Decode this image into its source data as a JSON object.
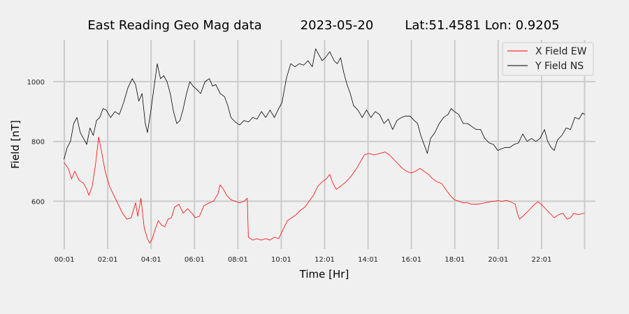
{
  "chart_data": {
    "type": "line",
    "title_parts": [
      "East Reading Geo Mag data",
      "2023-05-20",
      "Lat:51.4581  Lon: 0.9205"
    ],
    "xlabel": "Time  [Hr]",
    "ylabel": "Field  [nT]",
    "x_unit": "hours",
    "xlim": [
      -0.5,
      24.5
    ],
    "ylim": [
      440,
      1140
    ],
    "x_ticks": [
      {
        "value": 0.0167,
        "label": "00:01"
      },
      {
        "value": 2.0167,
        "label": "02:01"
      },
      {
        "value": 4.0167,
        "label": "04:01"
      },
      {
        "value": 6.0167,
        "label": "06:01"
      },
      {
        "value": 8.0167,
        "label": "08:01"
      },
      {
        "value": 10.0167,
        "label": "10:01"
      },
      {
        "value": 12.0167,
        "label": "12:01"
      },
      {
        "value": 14.0167,
        "label": "14:01"
      },
      {
        "value": 16.0167,
        "label": "16:01"
      },
      {
        "value": 18.0167,
        "label": "18:01"
      },
      {
        "value": 20.0167,
        "label": "20:01"
      },
      {
        "value": 22.0167,
        "label": "22:01"
      }
    ],
    "y_ticks": [
      600,
      800,
      1000
    ],
    "grid": true,
    "legend_position": "top-right",
    "series": [
      {
        "name": "X Field EW",
        "color": "#ff0000",
        "points": [
          [
            0.0,
            730
          ],
          [
            0.2,
            710
          ],
          [
            0.35,
            675
          ],
          [
            0.5,
            700
          ],
          [
            0.7,
            670
          ],
          [
            0.9,
            660
          ],
          [
            1.05,
            640
          ],
          [
            1.15,
            620
          ],
          [
            1.3,
            650
          ],
          [
            1.45,
            720
          ],
          [
            1.6,
            815
          ],
          [
            1.75,
            760
          ],
          [
            1.9,
            700
          ],
          [
            2.1,
            650
          ],
          [
            2.3,
            620
          ],
          [
            2.5,
            590
          ],
          [
            2.7,
            560
          ],
          [
            2.9,
            540
          ],
          [
            3.1,
            545
          ],
          [
            3.3,
            595
          ],
          [
            3.4,
            550
          ],
          [
            3.55,
            610
          ],
          [
            3.7,
            510
          ],
          [
            3.85,
            475
          ],
          [
            3.95,
            460
          ],
          [
            4.05,
            470
          ],
          [
            4.2,
            505
          ],
          [
            4.35,
            535
          ],
          [
            4.5,
            520
          ],
          [
            4.65,
            515
          ],
          [
            4.8,
            540
          ],
          [
            4.95,
            545
          ],
          [
            5.1,
            580
          ],
          [
            5.3,
            590
          ],
          [
            5.5,
            560
          ],
          [
            5.7,
            575
          ],
          [
            5.9,
            560
          ],
          [
            6.05,
            545
          ],
          [
            6.25,
            550
          ],
          [
            6.45,
            585
          ],
          [
            6.7,
            595
          ],
          [
            6.9,
            600
          ],
          [
            7.1,
            625
          ],
          [
            7.2,
            655
          ],
          [
            7.35,
            640
          ],
          [
            7.5,
            620
          ],
          [
            7.7,
            605
          ],
          [
            7.9,
            600
          ],
          [
            8.1,
            595
          ],
          [
            8.3,
            600
          ],
          [
            8.45,
            610
          ],
          [
            8.5,
            480
          ],
          [
            8.7,
            470
          ],
          [
            8.9,
            475
          ],
          [
            9.1,
            470
          ],
          [
            9.3,
            475
          ],
          [
            9.5,
            470
          ],
          [
            9.7,
            480
          ],
          [
            9.9,
            475
          ],
          [
            10.1,
            505
          ],
          [
            10.3,
            535
          ],
          [
            10.5,
            545
          ],
          [
            10.7,
            555
          ],
          [
            10.9,
            570
          ],
          [
            11.1,
            580
          ],
          [
            11.3,
            600
          ],
          [
            11.5,
            620
          ],
          [
            11.7,
            650
          ],
          [
            11.9,
            665
          ],
          [
            12.1,
            675
          ],
          [
            12.25,
            690
          ],
          [
            12.4,
            660
          ],
          [
            12.55,
            640
          ],
          [
            12.75,
            650
          ],
          [
            13.0,
            665
          ],
          [
            13.2,
            680
          ],
          [
            13.45,
            705
          ],
          [
            13.65,
            730
          ],
          [
            13.85,
            755
          ],
          [
            14.05,
            760
          ],
          [
            14.3,
            755
          ],
          [
            14.55,
            760
          ],
          [
            14.8,
            765
          ],
          [
            15.0,
            755
          ],
          [
            15.2,
            740
          ],
          [
            15.4,
            725
          ],
          [
            15.6,
            710
          ],
          [
            15.8,
            700
          ],
          [
            16.0,
            695
          ],
          [
            16.2,
            700
          ],
          [
            16.4,
            710
          ],
          [
            16.6,
            700
          ],
          [
            16.8,
            690
          ],
          [
            17.0,
            675
          ],
          [
            17.2,
            665
          ],
          [
            17.4,
            660
          ],
          [
            17.6,
            640
          ],
          [
            17.8,
            620
          ],
          [
            18.0,
            605
          ],
          [
            18.2,
            600
          ],
          [
            18.4,
            595
          ],
          [
            18.6,
            595
          ],
          [
            18.8,
            590
          ],
          [
            19.0,
            590
          ],
          [
            19.2,
            592
          ],
          [
            19.4,
            595
          ],
          [
            19.6,
            598
          ],
          [
            19.8,
            600
          ],
          [
            20.0,
            602
          ],
          [
            20.2,
            600
          ],
          [
            20.4,
            603
          ],
          [
            20.6,
            598
          ],
          [
            20.8,
            590
          ],
          [
            20.9,
            560
          ],
          [
            21.0,
            540
          ],
          [
            21.15,
            550
          ],
          [
            21.3,
            560
          ],
          [
            21.5,
            575
          ],
          [
            21.7,
            590
          ],
          [
            21.85,
            598
          ],
          [
            22.0,
            590
          ],
          [
            22.2,
            575
          ],
          [
            22.4,
            560
          ],
          [
            22.6,
            545
          ],
          [
            22.8,
            555
          ],
          [
            23.0,
            560
          ],
          [
            23.2,
            540
          ],
          [
            23.35,
            545
          ],
          [
            23.5,
            560
          ],
          [
            23.7,
            555
          ],
          [
            23.85,
            558
          ],
          [
            24.0,
            560
          ]
        ]
      },
      {
        "name": "Y Field NS",
        "color": "#000000",
        "points": [
          [
            0.0,
            740
          ],
          [
            0.15,
            780
          ],
          [
            0.3,
            800
          ],
          [
            0.45,
            860
          ],
          [
            0.6,
            880
          ],
          [
            0.75,
            830
          ],
          [
            0.9,
            810
          ],
          [
            1.05,
            790
          ],
          [
            1.2,
            845
          ],
          [
            1.35,
            820
          ],
          [
            1.5,
            870
          ],
          [
            1.65,
            880
          ],
          [
            1.8,
            910
          ],
          [
            1.95,
            905
          ],
          [
            2.15,
            880
          ],
          [
            2.35,
            900
          ],
          [
            2.55,
            890
          ],
          [
            2.75,
            930
          ],
          [
            2.95,
            980
          ],
          [
            3.15,
            1010
          ],
          [
            3.3,
            990
          ],
          [
            3.45,
            935
          ],
          [
            3.6,
            960
          ],
          [
            3.75,
            860
          ],
          [
            3.85,
            830
          ],
          [
            4.0,
            900
          ],
          [
            4.15,
            980
          ],
          [
            4.3,
            1060
          ],
          [
            4.45,
            1010
          ],
          [
            4.6,
            1020
          ],
          [
            4.75,
            1000
          ],
          [
            4.9,
            960
          ],
          [
            5.05,
            900
          ],
          [
            5.2,
            860
          ],
          [
            5.35,
            870
          ],
          [
            5.5,
            910
          ],
          [
            5.65,
            960
          ],
          [
            5.8,
            1000
          ],
          [
            5.95,
            985
          ],
          [
            6.1,
            975
          ],
          [
            6.3,
            960
          ],
          [
            6.5,
            1000
          ],
          [
            6.7,
            1010
          ],
          [
            6.85,
            985
          ],
          [
            7.0,
            990
          ],
          [
            7.2,
            960
          ],
          [
            7.4,
            950
          ],
          [
            7.55,
            920
          ],
          [
            7.7,
            880
          ],
          [
            7.9,
            865
          ],
          [
            8.1,
            855
          ],
          [
            8.3,
            870
          ],
          [
            8.5,
            865
          ],
          [
            8.7,
            880
          ],
          [
            8.9,
            875
          ],
          [
            9.1,
            900
          ],
          [
            9.3,
            880
          ],
          [
            9.5,
            905
          ],
          [
            9.7,
            880
          ],
          [
            9.9,
            910
          ],
          [
            10.05,
            930
          ],
          [
            10.25,
            1010
          ],
          [
            10.45,
            1060
          ],
          [
            10.65,
            1050
          ],
          [
            10.85,
            1060
          ],
          [
            11.05,
            1055
          ],
          [
            11.25,
            1070
          ],
          [
            11.45,
            1050
          ],
          [
            11.6,
            1110
          ],
          [
            11.75,
            1090
          ],
          [
            11.9,
            1070
          ],
          [
            12.05,
            1080
          ],
          [
            12.25,
            1100
          ],
          [
            12.45,
            1070
          ],
          [
            12.6,
            1060
          ],
          [
            12.75,
            1080
          ],
          [
            12.9,
            1030
          ],
          [
            13.05,
            990
          ],
          [
            13.2,
            960
          ],
          [
            13.35,
            920
          ],
          [
            13.55,
            905
          ],
          [
            13.75,
            880
          ],
          [
            13.95,
            905
          ],
          [
            14.15,
            880
          ],
          [
            14.35,
            900
          ],
          [
            14.55,
            890
          ],
          [
            14.75,
            860
          ],
          [
            14.95,
            875
          ],
          [
            15.15,
            840
          ],
          [
            15.35,
            870
          ],
          [
            15.55,
            880
          ],
          [
            15.75,
            885
          ],
          [
            15.95,
            885
          ],
          [
            16.15,
            870
          ],
          [
            16.3,
            860
          ],
          [
            16.45,
            820
          ],
          [
            16.6,
            790
          ],
          [
            16.75,
            760
          ],
          [
            16.9,
            810
          ],
          [
            17.1,
            830
          ],
          [
            17.3,
            860
          ],
          [
            17.5,
            880
          ],
          [
            17.7,
            890
          ],
          [
            17.85,
            910
          ],
          [
            18.0,
            900
          ],
          [
            18.2,
            890
          ],
          [
            18.4,
            860
          ],
          [
            18.6,
            860
          ],
          [
            18.8,
            850
          ],
          [
            19.0,
            840
          ],
          [
            19.2,
            840
          ],
          [
            19.4,
            810
          ],
          [
            19.6,
            795
          ],
          [
            19.8,
            790
          ],
          [
            20.0,
            770
          ],
          [
            20.15,
            775
          ],
          [
            20.35,
            780
          ],
          [
            20.55,
            780
          ],
          [
            20.75,
            790
          ],
          [
            20.95,
            795
          ],
          [
            21.15,
            825
          ],
          [
            21.35,
            800
          ],
          [
            21.55,
            810
          ],
          [
            21.75,
            800
          ],
          [
            21.95,
            810
          ],
          [
            22.15,
            840
          ],
          [
            22.3,
            800
          ],
          [
            22.45,
            780
          ],
          [
            22.6,
            770
          ],
          [
            22.75,
            805
          ],
          [
            22.95,
            820
          ],
          [
            23.15,
            845
          ],
          [
            23.35,
            840
          ],
          [
            23.55,
            880
          ],
          [
            23.75,
            875
          ],
          [
            23.9,
            895
          ],
          [
            24.0,
            890
          ]
        ]
      }
    ]
  }
}
